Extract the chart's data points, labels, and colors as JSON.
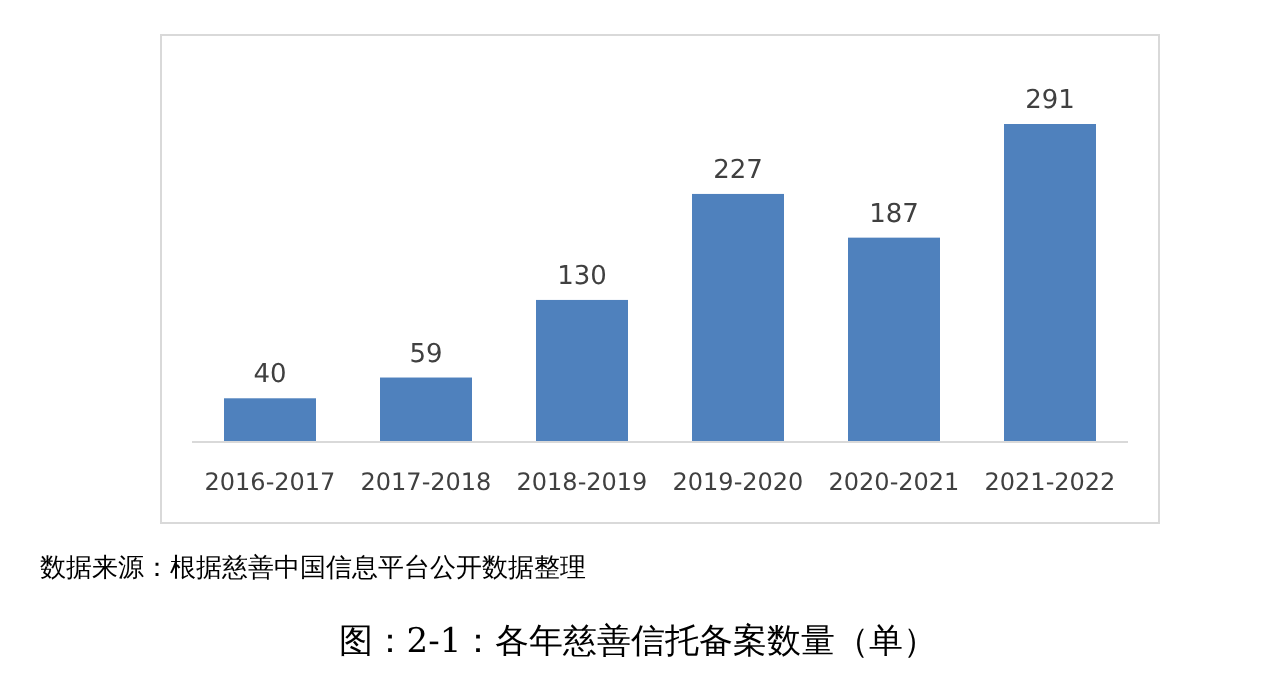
{
  "chart_data": {
    "type": "bar",
    "title": "图：2-1：各年慈善信托备案数量（单）",
    "annotations": [
      "数据来源：根据慈善中国信息平台公开数据整理"
    ],
    "categories": [
      "2016-2017",
      "2017-2018",
      "2018-2019",
      "2019-2020",
      "2020-2021",
      "2021-2022"
    ],
    "values": [
      40,
      59,
      130,
      227,
      187,
      291
    ],
    "color": "#4f81bd",
    "data_labels": true
  }
}
